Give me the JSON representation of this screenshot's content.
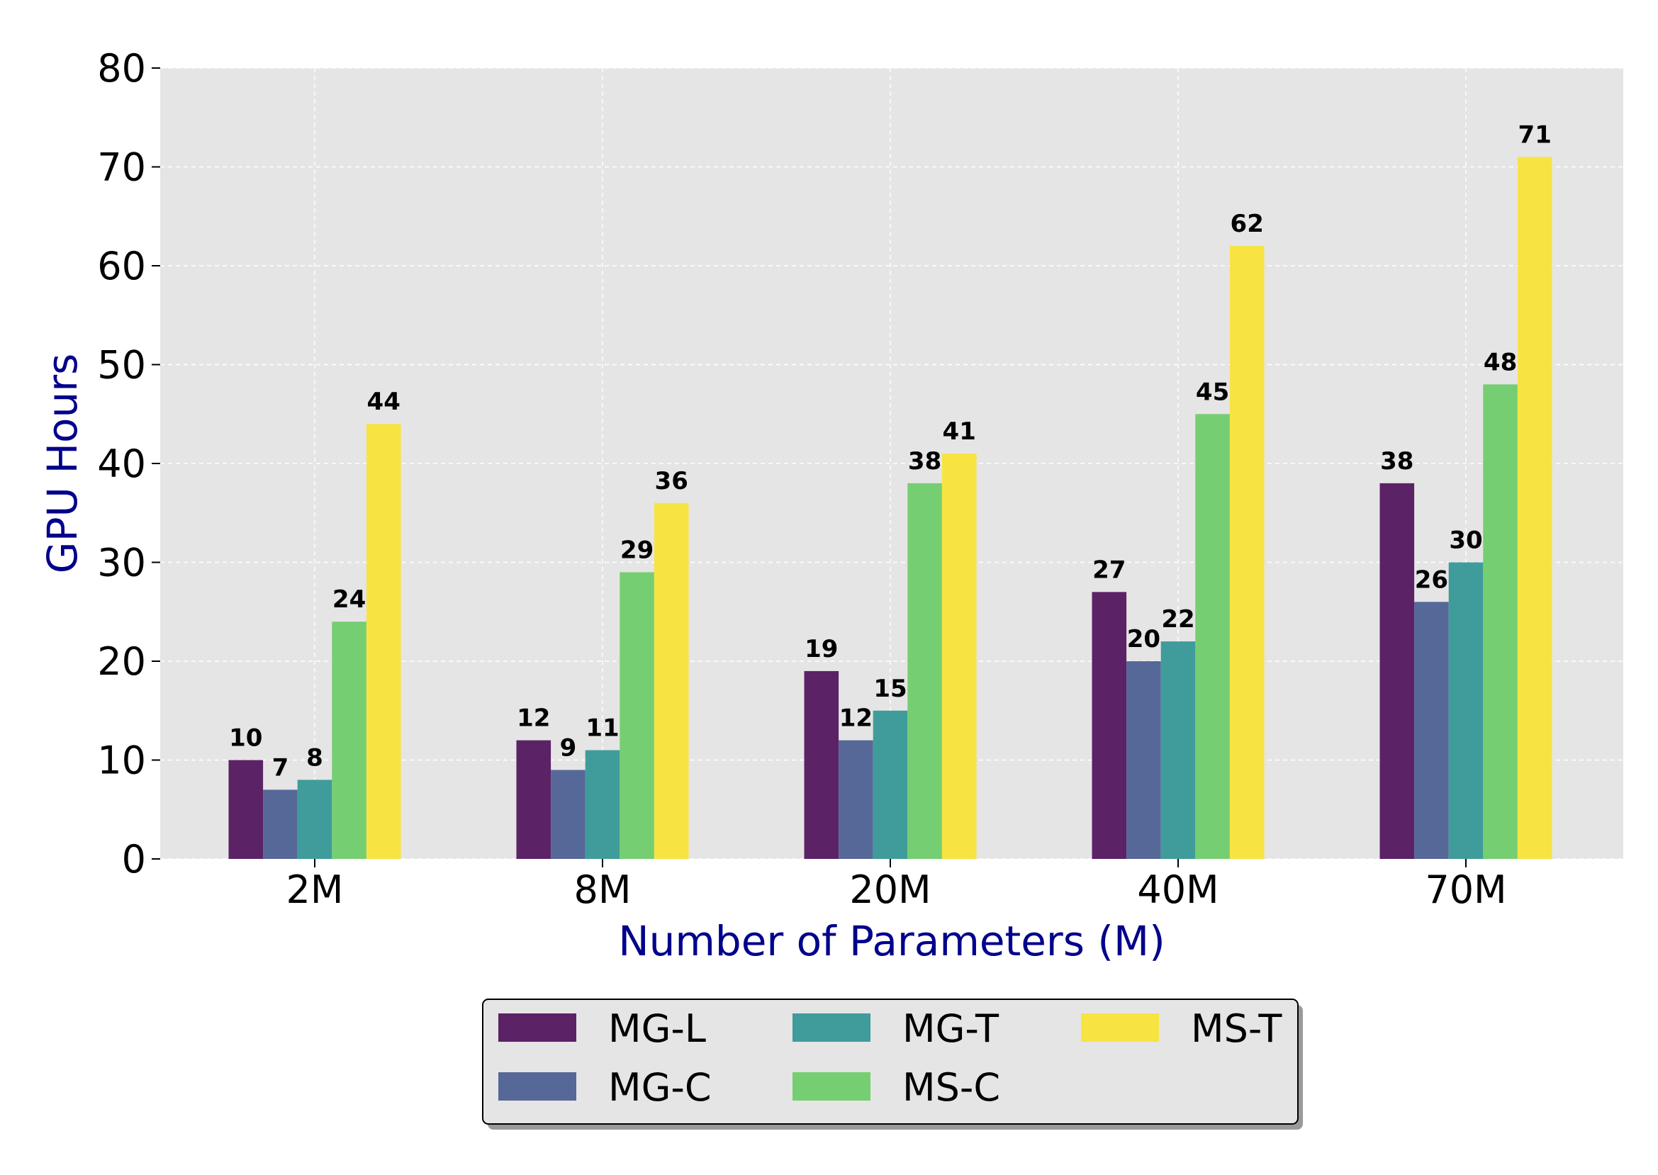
{
  "chart_data": {
    "type": "bar",
    "categories": [
      "2M",
      "8M",
      "20M",
      "40M",
      "70M"
    ],
    "series": [
      {
        "name": "MG-L",
        "color": "#5b2266",
        "values": [
          10,
          12,
          19,
          27,
          38
        ]
      },
      {
        "name": "MG-C",
        "color": "#566897",
        "values": [
          7,
          9,
          12,
          20,
          26
        ]
      },
      {
        "name": "MG-T",
        "color": "#3f9c9a",
        "values": [
          8,
          11,
          15,
          22,
          30
        ]
      },
      {
        "name": "MS-C",
        "color": "#76ce72",
        "values": [
          24,
          29,
          38,
          45,
          48
        ]
      },
      {
        "name": "MS-T",
        "color": "#f7e442",
        "values": [
          44,
          36,
          41,
          62,
          71
        ]
      }
    ],
    "xlabel": "Number of Parameters (M)",
    "ylabel": "GPU Hours",
    "ylim": [
      0,
      80
    ],
    "yticks": [
      "0",
      "10",
      "20",
      "30",
      "40",
      "50",
      "60",
      "70",
      "80"
    ],
    "grid": true,
    "legend_position": "bottom-center",
    "colors": {
      "plot_background": "#e5e5e5",
      "axis_label": "#00008b",
      "text": "#000000"
    }
  }
}
